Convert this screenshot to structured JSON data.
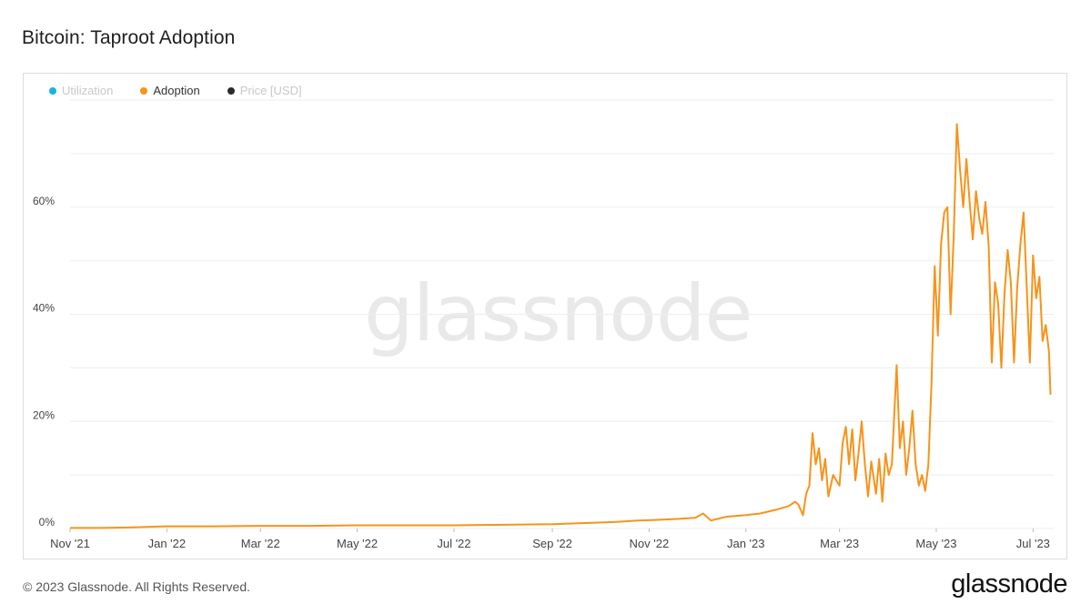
{
  "title": "Bitcoin: Taproot Adoption",
  "watermark": "glassnode",
  "footer": "© 2023 Glassnode. All Rights Reserved.",
  "brand": "glassnode",
  "colors": {
    "utilization": "#1ab0e8",
    "adoption": "#f7931a",
    "price": "#2b2b2b",
    "grid": "#eeeeee",
    "axis_text": "#444444"
  },
  "legend": [
    {
      "label": "Utilization",
      "color": "#1ab0e8",
      "active": false
    },
    {
      "label": "Adoption",
      "color": "#f7931a",
      "active": true
    },
    {
      "label": "Price [USD]",
      "color": "#2b2b2b",
      "active": false
    }
  ],
  "chart_data": {
    "type": "line",
    "title": "Bitcoin: Taproot Adoption",
    "xlabel": "",
    "ylabel": "",
    "ylim": [
      0,
      80
    ],
    "yticks": [
      {
        "value": 0,
        "label": "0%"
      },
      {
        "value": 20,
        "label": "20%"
      },
      {
        "value": 40,
        "label": "40%"
      },
      {
        "value": 60,
        "label": "60%"
      }
    ],
    "ygrid": [
      0,
      10,
      20,
      30,
      40,
      50,
      60,
      70,
      80
    ],
    "xlim": [
      "2021-11-01",
      "2023-07-14"
    ],
    "xticks": [
      {
        "date": "2021-11-01",
        "label": "Nov '21"
      },
      {
        "date": "2022-01-01",
        "label": "Jan '22"
      },
      {
        "date": "2022-03-01",
        "label": "Mar '22"
      },
      {
        "date": "2022-05-01",
        "label": "May '22"
      },
      {
        "date": "2022-07-01",
        "label": "Jul '22"
      },
      {
        "date": "2022-09-01",
        "label": "Sep '22"
      },
      {
        "date": "2022-11-01",
        "label": "Nov '22"
      },
      {
        "date": "2023-01-01",
        "label": "Jan '23"
      },
      {
        "date": "2023-03-01",
        "label": "Mar '23"
      },
      {
        "date": "2023-05-01",
        "label": "May '23"
      },
      {
        "date": "2023-07-01",
        "label": "Jul '23"
      }
    ],
    "grid": true,
    "legend_placement": "top-left",
    "series": [
      {
        "name": "Adoption",
        "color": "#f7931a",
        "points": [
          [
            "2021-11-01",
            0.1
          ],
          [
            "2021-11-20",
            0.1
          ],
          [
            "2021-12-10",
            0.2
          ],
          [
            "2022-01-01",
            0.4
          ],
          [
            "2022-02-01",
            0.4
          ],
          [
            "2022-03-01",
            0.5
          ],
          [
            "2022-04-01",
            0.5
          ],
          [
            "2022-05-01",
            0.6
          ],
          [
            "2022-06-01",
            0.6
          ],
          [
            "2022-07-01",
            0.6
          ],
          [
            "2022-08-01",
            0.7
          ],
          [
            "2022-09-01",
            0.8
          ],
          [
            "2022-09-20",
            1.0
          ],
          [
            "2022-10-10",
            1.2
          ],
          [
            "2022-10-25",
            1.5
          ],
          [
            "2022-11-05",
            1.6
          ],
          [
            "2022-11-20",
            1.8
          ],
          [
            "2022-11-30",
            2.0
          ],
          [
            "2022-12-05",
            2.8
          ],
          [
            "2022-12-10",
            1.5
          ],
          [
            "2022-12-20",
            2.2
          ],
          [
            "2023-01-01",
            2.5
          ],
          [
            "2023-01-10",
            2.8
          ],
          [
            "2023-01-20",
            3.5
          ],
          [
            "2023-01-28",
            4.2
          ],
          [
            "2023-02-01",
            5.0
          ],
          [
            "2023-02-03",
            4.5
          ],
          [
            "2023-02-06",
            2.5
          ],
          [
            "2023-02-08",
            6.5
          ],
          [
            "2023-02-10",
            8.0
          ],
          [
            "2023-02-12",
            17.8
          ],
          [
            "2023-02-14",
            12.0
          ],
          [
            "2023-02-16",
            15.0
          ],
          [
            "2023-02-18",
            9.0
          ],
          [
            "2023-02-20",
            13.0
          ],
          [
            "2023-02-22",
            6.0
          ],
          [
            "2023-02-25",
            10.0
          ],
          [
            "2023-03-01",
            8.0
          ],
          [
            "2023-03-03",
            16.0
          ],
          [
            "2023-03-05",
            19.0
          ],
          [
            "2023-03-07",
            12.0
          ],
          [
            "2023-03-09",
            18.5
          ],
          [
            "2023-03-11",
            9.0
          ],
          [
            "2023-03-13",
            14.0
          ],
          [
            "2023-03-15",
            20.0
          ],
          [
            "2023-03-17",
            12.0
          ],
          [
            "2023-03-19",
            6.0
          ],
          [
            "2023-03-21",
            12.5
          ],
          [
            "2023-03-24",
            6.5
          ],
          [
            "2023-03-26",
            13.0
          ],
          [
            "2023-03-28",
            5.0
          ],
          [
            "2023-03-30",
            14.0
          ],
          [
            "2023-04-01",
            10.0
          ],
          [
            "2023-04-03",
            12.0
          ],
          [
            "2023-04-06",
            30.5
          ],
          [
            "2023-04-08",
            15.0
          ],
          [
            "2023-04-10",
            20.0
          ],
          [
            "2023-04-12",
            10.0
          ],
          [
            "2023-04-14",
            15.0
          ],
          [
            "2023-04-16",
            22.0
          ],
          [
            "2023-04-18",
            12.0
          ],
          [
            "2023-04-20",
            8.0
          ],
          [
            "2023-04-22",
            10.0
          ],
          [
            "2023-04-24",
            7.0
          ],
          [
            "2023-04-26",
            12.0
          ],
          [
            "2023-04-28",
            27.0
          ],
          [
            "2023-04-30",
            49.0
          ],
          [
            "2023-05-02",
            36.0
          ],
          [
            "2023-05-04",
            53.0
          ],
          [
            "2023-05-06",
            59.0
          ],
          [
            "2023-05-08",
            60.0
          ],
          [
            "2023-05-10",
            40.0
          ],
          [
            "2023-05-12",
            55.0
          ],
          [
            "2023-05-14",
            75.5
          ],
          [
            "2023-05-16",
            67.0
          ],
          [
            "2023-05-18",
            60.0
          ],
          [
            "2023-05-20",
            69.0
          ],
          [
            "2023-05-22",
            61.0
          ],
          [
            "2023-05-24",
            54.0
          ],
          [
            "2023-05-26",
            63.0
          ],
          [
            "2023-05-28",
            58.0
          ],
          [
            "2023-05-30",
            55.0
          ],
          [
            "2023-06-01",
            61.0
          ],
          [
            "2023-06-03",
            53.0
          ],
          [
            "2023-06-05",
            31.0
          ],
          [
            "2023-06-07",
            46.0
          ],
          [
            "2023-06-09",
            42.0
          ],
          [
            "2023-06-11",
            30.0
          ],
          [
            "2023-06-13",
            44.0
          ],
          [
            "2023-06-15",
            52.0
          ],
          [
            "2023-06-17",
            46.0
          ],
          [
            "2023-06-19",
            31.0
          ],
          [
            "2023-06-21",
            45.0
          ],
          [
            "2023-06-23",
            53.0
          ],
          [
            "2023-06-25",
            59.0
          ],
          [
            "2023-06-27",
            45.0
          ],
          [
            "2023-06-29",
            31.0
          ],
          [
            "2023-07-01",
            51.0
          ],
          [
            "2023-07-03",
            43.0
          ],
          [
            "2023-07-05",
            47.0
          ],
          [
            "2023-07-07",
            35.0
          ],
          [
            "2023-07-09",
            38.0
          ],
          [
            "2023-07-11",
            33.0
          ],
          [
            "2023-07-12",
            25.0
          ]
        ]
      }
    ]
  }
}
